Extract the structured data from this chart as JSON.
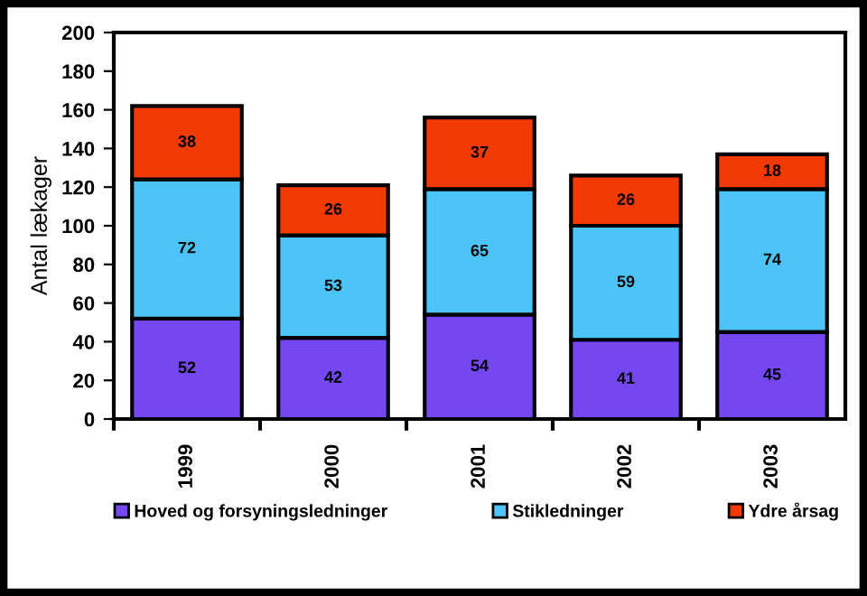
{
  "chart_data": {
    "type": "bar",
    "stacked": true,
    "ylabel": "Antal lækager",
    "categories": [
      "1999",
      "2000",
      "2001",
      "2002",
      "2003"
    ],
    "series": [
      {
        "name": "Hoved og forsyningsledninger",
        "color": "#7447f0",
        "values": [
          52,
          42,
          54,
          41,
          45
        ]
      },
      {
        "name": "Stikledninger",
        "color": "#4cc4f7",
        "values": [
          72,
          53,
          65,
          59,
          74
        ]
      },
      {
        "name": "Ydre årsag",
        "color": "#f23a05",
        "values": [
          38,
          26,
          37,
          26,
          18
        ]
      }
    ],
    "ylim": [
      0,
      200
    ],
    "yticks": [
      0,
      20,
      40,
      60,
      80,
      100,
      120,
      140,
      160,
      180,
      200
    ],
    "data_labels": true,
    "grid": false,
    "legend": "bottom"
  }
}
